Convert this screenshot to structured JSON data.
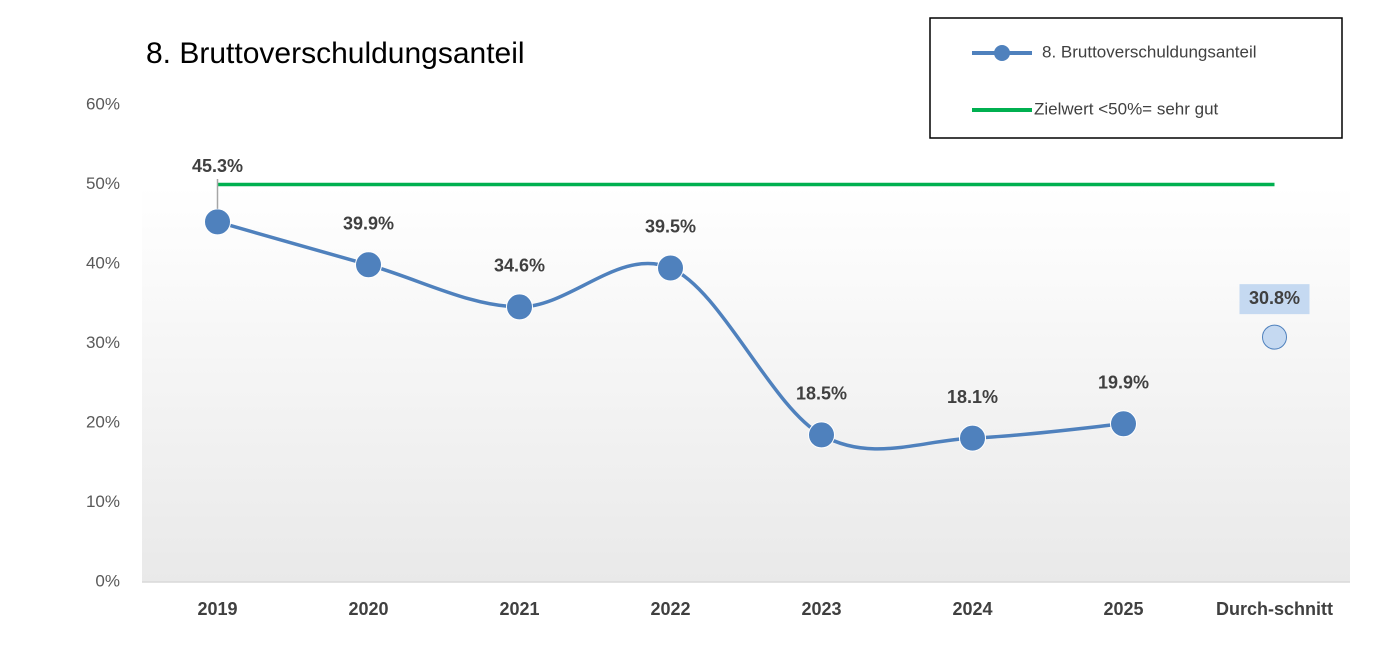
{
  "chart_data": {
    "type": "line",
    "title": "8. Bruttoverschuldungsanteil",
    "categories": [
      "2019",
      "2020",
      "2021",
      "2022",
      "2023",
      "2024",
      "2025",
      "Durch-schnitt"
    ],
    "series": [
      {
        "name": "8. Bruttoverschuldungsanteil",
        "color": "#4f81bd",
        "smooth": true,
        "values": [
          45.3,
          39.9,
          34.6,
          39.5,
          18.5,
          18.1,
          19.9,
          null
        ],
        "value_labels": [
          "45.3%",
          "39.9%",
          "34.6%",
          "39.5%",
          "18.5%",
          "18.1%",
          "19.9%",
          null
        ]
      },
      {
        "name": "Zielwert <50%= sehr gut",
        "color": "#00b050",
        "values": [
          50,
          50,
          50,
          50,
          50,
          50,
          50,
          50
        ]
      }
    ],
    "average": {
      "value": 30.8,
      "label": "30.8%",
      "color": "#c5d9f1"
    },
    "ylim": [
      0,
      60
    ],
    "yticks": [
      {
        "value": 0,
        "label": "0%"
      },
      {
        "value": 10,
        "label": "10%"
      },
      {
        "value": 20,
        "label": "20%"
      },
      {
        "value": 30,
        "label": "30%"
      },
      {
        "value": 40,
        "label": "40%"
      },
      {
        "value": 50,
        "label": "50%"
      },
      {
        "value": 60,
        "label": "60%"
      }
    ],
    "legend": "top-right"
  }
}
